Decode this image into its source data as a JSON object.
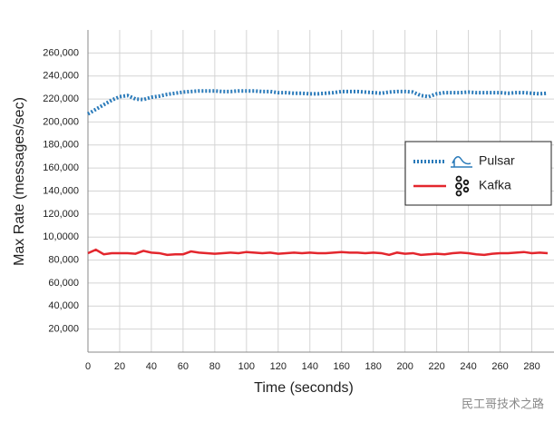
{
  "chart_data": {
    "type": "line",
    "ylabel": "Max Rate (messages/sec)",
    "xlabel": "Time (seconds)",
    "watermark": "民工哥技术之路",
    "xlim": [
      0,
      294
    ],
    "ylim": [
      0,
      280000
    ],
    "xticks": [
      0,
      20,
      40,
      60,
      80,
      100,
      120,
      140,
      160,
      180,
      200,
      220,
      240,
      260,
      280
    ],
    "yticks": [
      {
        "value": 20000,
        "label": "20,000"
      },
      {
        "value": 40000,
        "label": "40,000"
      },
      {
        "value": 60000,
        "label": "60,000"
      },
      {
        "value": 80000,
        "label": "80,000"
      },
      {
        "value": 100000,
        "label": "10,0000"
      },
      {
        "value": 120000,
        "label": "120,000"
      },
      {
        "value": 140000,
        "label": "140,000"
      },
      {
        "value": 160000,
        "label": "160,000"
      },
      {
        "value": 180000,
        "label": "180,000"
      },
      {
        "value": 200000,
        "label": "200,000"
      },
      {
        "value": 220000,
        "label": "220,000"
      },
      {
        "value": 240000,
        "label": "240,000"
      },
      {
        "value": 260000,
        "label": "260,000"
      }
    ],
    "grid": true,
    "legend": "right",
    "x": [
      0,
      5,
      10,
      15,
      20,
      25,
      30,
      35,
      40,
      45,
      50,
      55,
      60,
      65,
      70,
      75,
      80,
      85,
      90,
      95,
      100,
      105,
      110,
      115,
      120,
      125,
      130,
      135,
      140,
      145,
      150,
      155,
      160,
      165,
      170,
      175,
      180,
      185,
      190,
      195,
      200,
      205,
      210,
      215,
      220,
      225,
      230,
      235,
      240,
      245,
      250,
      255,
      260,
      265,
      270,
      275,
      280,
      285,
      290
    ],
    "series": [
      {
        "name": "Pulsar",
        "color": "#2b7bba",
        "dash": "dotted",
        "values": [
          207000,
          211000,
          215000,
          219000,
          222000,
          223000,
          220000,
          219500,
          221500,
          222500,
          224000,
          225000,
          226000,
          226500,
          227000,
          227000,
          227000,
          226500,
          226500,
          227000,
          227000,
          227000,
          226500,
          226500,
          225500,
          225500,
          225000,
          225000,
          224500,
          224500,
          225000,
          225500,
          226500,
          226500,
          226500,
          226000,
          225500,
          225000,
          226000,
          226500,
          226500,
          226000,
          223000,
          222000,
          224500,
          225500,
          225500,
          225500,
          226000,
          225500,
          225500,
          225500,
          225500,
          225000,
          225500,
          225500,
          225000,
          224500,
          225000
        ]
      },
      {
        "name": "Kafka",
        "color": "#e3262d",
        "dash": "solid",
        "values": [
          86000,
          89000,
          85000,
          86000,
          86000,
          86000,
          85500,
          88000,
          86500,
          86000,
          84500,
          85000,
          85000,
          87500,
          86500,
          86000,
          85500,
          86000,
          86500,
          86000,
          87000,
          86500,
          86000,
          86500,
          85500,
          86000,
          86500,
          86000,
          86500,
          86000,
          86000,
          86500,
          87000,
          86500,
          86500,
          86000,
          86500,
          86000,
          84500,
          86500,
          85500,
          86000,
          84500,
          85000,
          85500,
          85000,
          86000,
          86500,
          86000,
          85000,
          84500,
          85500,
          86000,
          86000,
          86500,
          87000,
          86000,
          86500,
          86000
        ]
      }
    ]
  }
}
